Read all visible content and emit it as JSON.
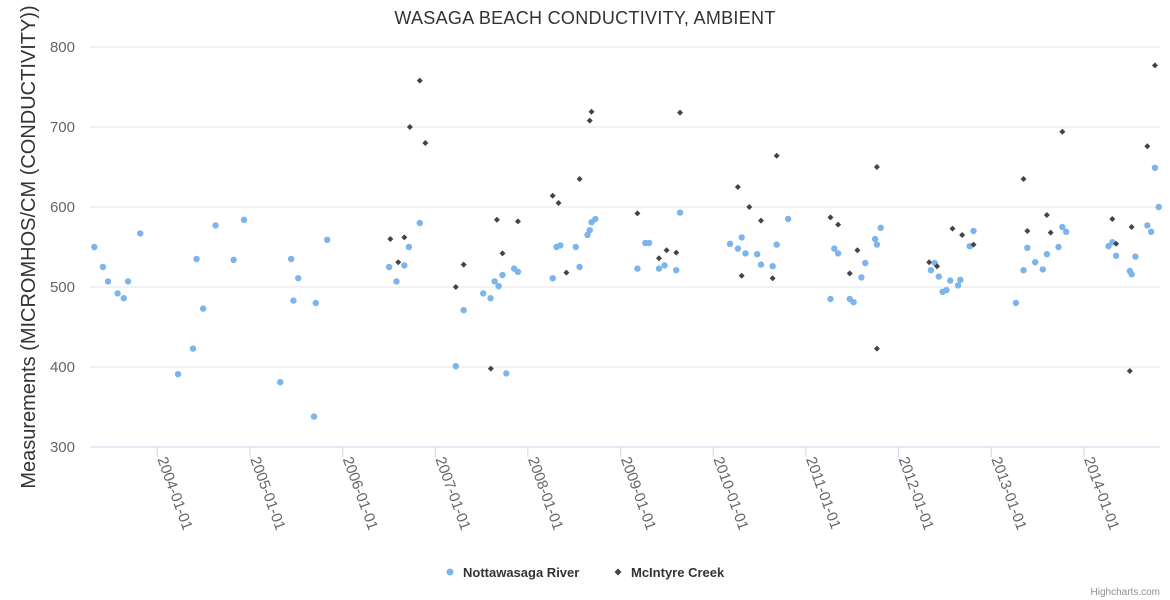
{
  "colors": {
    "series1": "#7cb5ec",
    "series2": "#434348",
    "grid": "#e6e6e6",
    "text": "#333333"
  },
  "credits": "Highcharts.com",
  "chart_data": {
    "type": "scatter",
    "title": "WASAGA BEACH CONDUCTIVITY, AMBIENT",
    "xlabel": "",
    "ylabel": "Measurements (MICROMHOS/CM (CONDUCTIVITY))",
    "xlim": [
      "2003-04-11",
      "2014-10-28"
    ],
    "ylim": [
      300,
      800
    ],
    "yticks": [
      300,
      400,
      500,
      600,
      700,
      800
    ],
    "xticks": [
      "2004-01-01",
      "2005-01-01",
      "2006-01-01",
      "2007-01-01",
      "2008-01-01",
      "2009-01-01",
      "2010-01-01",
      "2011-01-01",
      "2012-01-01",
      "2013-01-01",
      "2014-01-01"
    ],
    "grid": true,
    "legend_position": "bottom-center",
    "series": [
      {
        "name": "Nottawasaga River",
        "marker": "circle",
        "points": [
          [
            "2003-04-28",
            550
          ],
          [
            "2003-06-01",
            525
          ],
          [
            "2003-06-21",
            507
          ],
          [
            "2003-07-29",
            492
          ],
          [
            "2003-08-22",
            486
          ],
          [
            "2003-09-08",
            507
          ],
          [
            "2003-10-26",
            567
          ],
          [
            "2004-03-23",
            391
          ],
          [
            "2004-05-21",
            423
          ],
          [
            "2004-06-04",
            535
          ],
          [
            "2004-06-30",
            473
          ],
          [
            "2004-08-18",
            577
          ],
          [
            "2004-10-28",
            534
          ],
          [
            "2004-12-08",
            584
          ],
          [
            "2005-04-30",
            381
          ],
          [
            "2005-06-12",
            535
          ],
          [
            "2005-06-21",
            483
          ],
          [
            "2005-07-10",
            511
          ],
          [
            "2005-09-10",
            338
          ],
          [
            "2005-09-17",
            480
          ],
          [
            "2005-11-01",
            559
          ],
          [
            "2006-07-03",
            525
          ],
          [
            "2006-08-01",
            507
          ],
          [
            "2006-09-01",
            527
          ],
          [
            "2006-09-19",
            550
          ],
          [
            "2006-11-01",
            580
          ],
          [
            "2007-03-23",
            401
          ],
          [
            "2007-04-23",
            471
          ],
          [
            "2007-07-09",
            492
          ],
          [
            "2007-08-07",
            486
          ],
          [
            "2007-08-23",
            507
          ],
          [
            "2007-09-08",
            501
          ],
          [
            "2007-09-23",
            515
          ],
          [
            "2007-10-08",
            392
          ],
          [
            "2007-11-08",
            523
          ],
          [
            "2007-11-23",
            519
          ],
          [
            "2008-04-08",
            511
          ],
          [
            "2008-04-23",
            550
          ],
          [
            "2008-05-08",
            552
          ],
          [
            "2008-07-08",
            550
          ],
          [
            "2008-07-23",
            525
          ],
          [
            "2008-08-23",
            565
          ],
          [
            "2008-09-01",
            571
          ],
          [
            "2008-09-08",
            581
          ],
          [
            "2008-09-23",
            585
          ],
          [
            "2009-03-08",
            523
          ],
          [
            "2009-04-08",
            555
          ],
          [
            "2009-04-23",
            555
          ],
          [
            "2009-06-01",
            523
          ],
          [
            "2009-06-23",
            527
          ],
          [
            "2009-08-08",
            521
          ],
          [
            "2009-08-23",
            593
          ],
          [
            "2010-03-08",
            554
          ],
          [
            "2010-04-08",
            548
          ],
          [
            "2010-04-23",
            562
          ],
          [
            "2010-05-08",
            542
          ],
          [
            "2010-06-23",
            541
          ],
          [
            "2010-07-08",
            528
          ],
          [
            "2010-08-23",
            526
          ],
          [
            "2010-09-08",
            553
          ],
          [
            "2010-10-23",
            585
          ],
          [
            "2011-04-08",
            485
          ],
          [
            "2011-04-23",
            548
          ],
          [
            "2011-05-08",
            542
          ],
          [
            "2011-06-23",
            485
          ],
          [
            "2011-07-08",
            481
          ],
          [
            "2011-08-08",
            512
          ],
          [
            "2011-08-23",
            530
          ],
          [
            "2011-10-01",
            560
          ],
          [
            "2011-10-08",
            553
          ],
          [
            "2011-10-23",
            574
          ],
          [
            "2012-05-08",
            521
          ],
          [
            "2012-05-23",
            530
          ],
          [
            "2012-06-08",
            513
          ],
          [
            "2012-06-23",
            494
          ],
          [
            "2012-07-08",
            496
          ],
          [
            "2012-07-23",
            508
          ],
          [
            "2012-08-23",
            502
          ],
          [
            "2012-09-01",
            509
          ],
          [
            "2012-10-08",
            551
          ],
          [
            "2012-10-23",
            570
          ],
          [
            "2013-04-08",
            480
          ],
          [
            "2013-05-08",
            521
          ],
          [
            "2013-05-23",
            549
          ],
          [
            "2013-06-23",
            531
          ],
          [
            "2013-07-23",
            522
          ],
          [
            "2013-08-08",
            541
          ],
          [
            "2013-09-23",
            550
          ],
          [
            "2013-10-08",
            575
          ],
          [
            "2013-10-23",
            569
          ],
          [
            "2014-04-08",
            551
          ],
          [
            "2014-04-23",
            556
          ],
          [
            "2014-05-08",
            539
          ],
          [
            "2014-07-01",
            520
          ],
          [
            "2014-07-08",
            516
          ],
          [
            "2014-07-23",
            538
          ],
          [
            "2014-09-08",
            577
          ],
          [
            "2014-09-23",
            569
          ],
          [
            "2014-10-08",
            649
          ],
          [
            "2014-10-23",
            600
          ]
        ]
      },
      {
        "name": "McIntyre Creek",
        "marker": "diamond",
        "points": [
          [
            "2006-07-08",
            560
          ],
          [
            "2006-08-08",
            531
          ],
          [
            "2006-09-01",
            562
          ],
          [
            "2006-09-23",
            700
          ],
          [
            "2006-11-01",
            758
          ],
          [
            "2006-11-23",
            680
          ],
          [
            "2007-03-23",
            500
          ],
          [
            "2007-04-23",
            528
          ],
          [
            "2007-08-08",
            398
          ],
          [
            "2007-09-01",
            584
          ],
          [
            "2007-09-23",
            542
          ],
          [
            "2007-11-23",
            582
          ],
          [
            "2008-04-08",
            614
          ],
          [
            "2008-05-01",
            605
          ],
          [
            "2008-06-01",
            518
          ],
          [
            "2008-07-23",
            635
          ],
          [
            "2008-09-01",
            708
          ],
          [
            "2008-09-08",
            719
          ],
          [
            "2009-03-08",
            592
          ],
          [
            "2009-06-01",
            536
          ],
          [
            "2009-07-01",
            546
          ],
          [
            "2009-08-08",
            543
          ],
          [
            "2009-08-23",
            718
          ],
          [
            "2010-04-08",
            625
          ],
          [
            "2010-04-23",
            514
          ],
          [
            "2010-05-23",
            600
          ],
          [
            "2010-07-08",
            583
          ],
          [
            "2010-08-23",
            511
          ],
          [
            "2010-09-08",
            664
          ],
          [
            "2011-04-08",
            587
          ],
          [
            "2011-05-08",
            578
          ],
          [
            "2011-06-23",
            517
          ],
          [
            "2011-07-23",
            546
          ],
          [
            "2011-10-08",
            423
          ],
          [
            "2011-10-08",
            650
          ],
          [
            "2012-05-01",
            531
          ],
          [
            "2012-06-01",
            526
          ],
          [
            "2012-08-01",
            573
          ],
          [
            "2012-09-08",
            565
          ],
          [
            "2012-10-23",
            553
          ],
          [
            "2013-05-08",
            635
          ],
          [
            "2013-05-23",
            570
          ],
          [
            "2013-08-08",
            590
          ],
          [
            "2013-08-23",
            568
          ],
          [
            "2013-10-08",
            694
          ],
          [
            "2014-04-23",
            585
          ],
          [
            "2014-05-08",
            554
          ],
          [
            "2014-07-01",
            395
          ],
          [
            "2014-07-08",
            575
          ],
          [
            "2014-09-08",
            676
          ],
          [
            "2014-10-08",
            777
          ]
        ]
      }
    ]
  }
}
